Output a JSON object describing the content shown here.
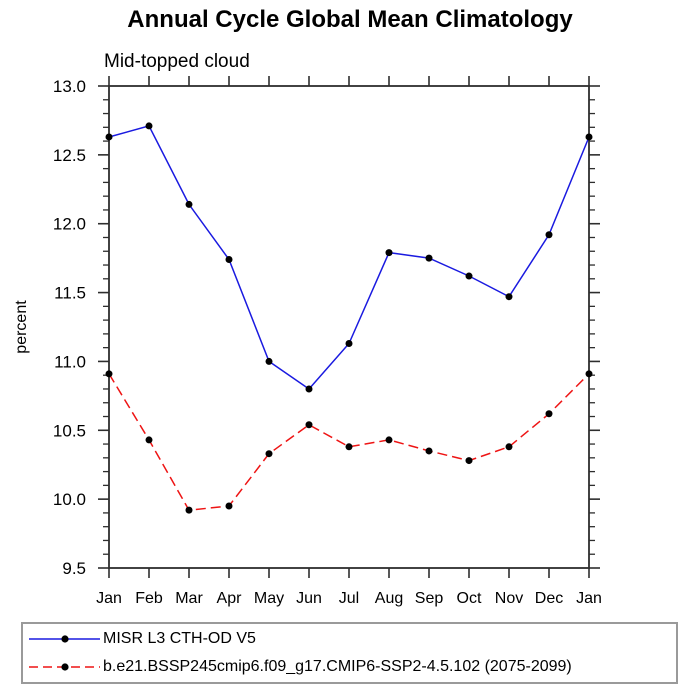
{
  "chart_data": {
    "type": "line",
    "title": "Annual Cycle Global Mean Climatology",
    "subtitle": "Mid-topped cloud",
    "ylabel": "percent",
    "ylim": [
      9.5,
      13.0
    ],
    "ymajor_step": 0.5,
    "yminor_step": 0.1,
    "grid": false,
    "legend_position": "bottom-left-box",
    "ytick_labels": [
      "13.0",
      "12.5",
      "12.0",
      "11.5",
      "11.0",
      "10.5",
      "10.0",
      "9.5"
    ],
    "ytick_values": [
      13.0,
      12.5,
      12.0,
      11.5,
      11.0,
      10.5,
      10.0,
      9.5
    ],
    "categories": [
      "Jan",
      "Feb",
      "Mar",
      "Apr",
      "May",
      "Jun",
      "Jul",
      "Aug",
      "Sep",
      "Oct",
      "Nov",
      "Dec",
      "Jan"
    ],
    "series": [
      {
        "name": "MISR L3 CTH-OD V5",
        "color": "#1a1ae0",
        "line_style": "solid",
        "marker": "filled-circle",
        "marker_color": "#000000",
        "values": [
          12.63,
          12.71,
          12.14,
          11.74,
          11.0,
          10.8,
          11.13,
          11.79,
          11.75,
          11.62,
          11.47,
          11.92,
          12.63
        ]
      },
      {
        "name": "b.e21.BSSP245cmip6.f09_g17.CMIP6-SSP2-4.5.102 (2075-2099)",
        "color": "#ee1414",
        "line_style": "dashed",
        "marker": "filled-circle",
        "marker_color": "#000000",
        "values": [
          10.91,
          10.43,
          9.92,
          9.95,
          10.33,
          10.54,
          10.38,
          10.43,
          10.35,
          10.28,
          10.38,
          10.62,
          10.91
        ]
      }
    ],
    "axis_color": "#2e2e2e"
  }
}
